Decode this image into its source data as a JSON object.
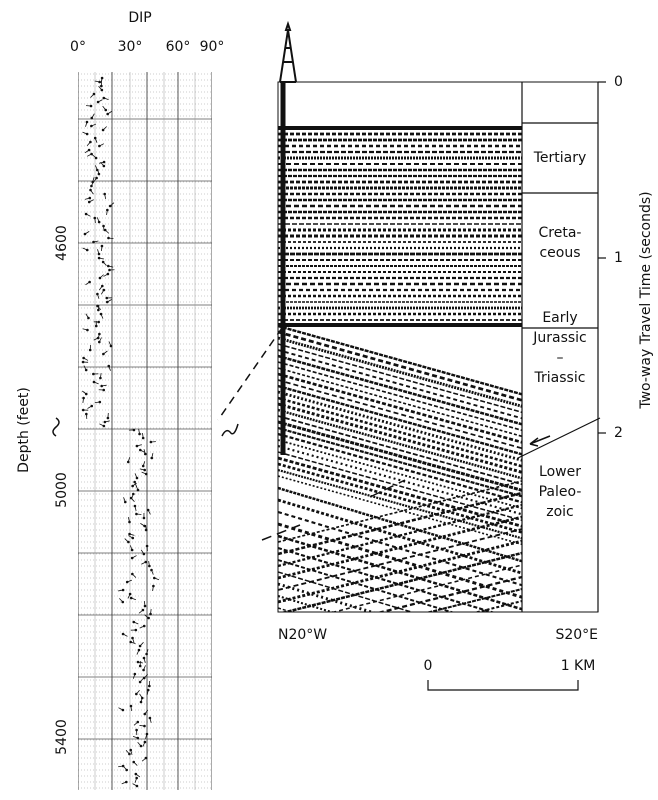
{
  "dipmeter": {
    "title": "DIP",
    "dip_ticks": [
      "0°",
      "30°",
      "60°",
      "90°"
    ],
    "depth_ticks": [
      "4600",
      "5000",
      "5400"
    ],
    "depth_label": "Depth (feet)"
  },
  "seismic": {
    "units": [
      [
        "Tertiary"
      ],
      [
        "Creta-",
        "ceous"
      ],
      [
        "Early",
        "Jurassic",
        "–",
        "Triassic"
      ],
      [
        "Lower",
        "Paleo-",
        "zoic"
      ]
    ],
    "time_ticks": [
      "0",
      "1",
      "2"
    ],
    "time_label": "Two-way Travel Time (seconds)",
    "left_label": "N20°W",
    "right_label": "S20°E",
    "scale_labels": [
      "0",
      "1 KM"
    ]
  }
}
